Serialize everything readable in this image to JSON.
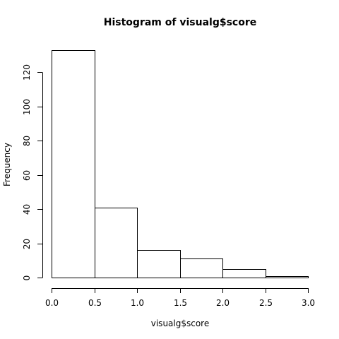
{
  "chart_data": {
    "type": "bar",
    "title": "Histogram of visualg$score",
    "xlabel": "visualg$score",
    "ylabel": "Frequency",
    "bins": [
      {
        "start": 0.0,
        "end": 0.5,
        "count": 133
      },
      {
        "start": 0.5,
        "end": 1.0,
        "count": 41
      },
      {
        "start": 1.0,
        "end": 1.5,
        "count": 16
      },
      {
        "start": 1.5,
        "end": 2.0,
        "count": 11
      },
      {
        "start": 2.0,
        "end": 2.5,
        "count": 5
      },
      {
        "start": 2.5,
        "end": 3.0,
        "count": 1
      }
    ],
    "xlim": [
      0,
      3
    ],
    "ylim": [
      0,
      133
    ],
    "x_ticks": [
      "0.0",
      "0.5",
      "1.0",
      "1.5",
      "2.0",
      "2.5",
      "3.0"
    ],
    "y_ticks": [
      "0",
      "20",
      "40",
      "60",
      "80",
      "100",
      "120"
    ],
    "grid": false,
    "legend": "none",
    "colors": {
      "bar_fill": "#ffffff",
      "bar_stroke": "#000000",
      "axis": "#000000"
    }
  }
}
